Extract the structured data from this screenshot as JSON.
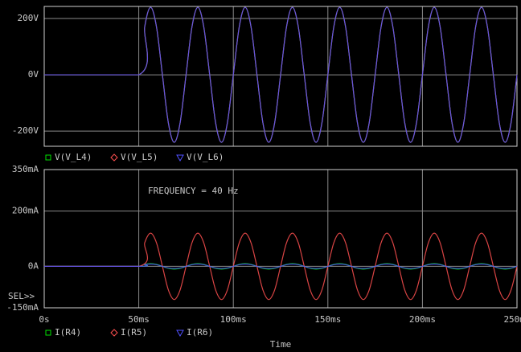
{
  "chart_data": [
    {
      "type": "line",
      "x": [
        0,
        50,
        53.125,
        56.25,
        59.375,
        62.5,
        65.625,
        68.75,
        71.875,
        75,
        78.125,
        81.25,
        84.375,
        87.5,
        90.625,
        93.75,
        96.875,
        100,
        103.125,
        106.25,
        109.375,
        112.5,
        115.625,
        118.75,
        121.875,
        125,
        128.125,
        131.25,
        134.375,
        137.5,
        140.625,
        143.75,
        146.875,
        150,
        153.125,
        156.25,
        159.375,
        162.5,
        165.625,
        168.75,
        171.875,
        175,
        178.125,
        181.25,
        184.375,
        187.5,
        190.625,
        193.75,
        196.875,
        200,
        203.125,
        206.25,
        209.375,
        212.5,
        215.625,
        218.75,
        221.875,
        225,
        228.125,
        231.25,
        234.375,
        237.5,
        240.625,
        243.75,
        246.875,
        250
      ],
      "xlim": [
        0,
        250
      ],
      "xticks": [
        0,
        50,
        100,
        150,
        200,
        250
      ],
      "ylim": [
        -254,
        243
      ],
      "yticks": [
        {
          "value": 200,
          "label": "200V"
        },
        {
          "value": 0,
          "label": "0V"
        },
        {
          "value": -200,
          "label": "-200V"
        }
      ],
      "grid": true,
      "series": [
        {
          "name": "V(V_L4)",
          "color": "#00e000",
          "marker": "square",
          "values": [
            0,
            0,
            170,
            240,
            170,
            0,
            -170,
            -240,
            -170,
            0,
            170,
            240,
            170,
            0,
            -170,
            -240,
            -170,
            0,
            170,
            240,
            170,
            0,
            -170,
            -240,
            -170,
            0,
            170,
            240,
            170,
            0,
            -170,
            -240,
            -170,
            0,
            170,
            240,
            170,
            0,
            -170,
            -240,
            -170,
            0,
            170,
            240,
            170,
            0,
            -170,
            -240,
            -170,
            0,
            170,
            240,
            170,
            0,
            -170,
            -240,
            -170,
            0,
            170,
            240,
            170,
            0,
            -170,
            -240,
            -170,
            0
          ]
        },
        {
          "name": "V(V_L5)",
          "color": "#ff5050",
          "marker": "diamond",
          "values": [
            0,
            0,
            170,
            240,
            170,
            0,
            -170,
            -240,
            -170,
            0,
            170,
            240,
            170,
            0,
            -170,
            -240,
            -170,
            0,
            170,
            240,
            170,
            0,
            -170,
            -240,
            -170,
            0,
            170,
            240,
            170,
            0,
            -170,
            -240,
            -170,
            0,
            170,
            240,
            170,
            0,
            -170,
            -240,
            -170,
            0,
            170,
            240,
            170,
            0,
            -170,
            -240,
            -170,
            0,
            170,
            240,
            170,
            0,
            -170,
            -240,
            -170,
            0,
            170,
            240,
            170,
            0,
            -170,
            -240,
            -170,
            0
          ]
        },
        {
          "name": "V(V_L6)",
          "color": "#5050ff",
          "marker": "triangle",
          "values": [
            0,
            0,
            170,
            240,
            170,
            0,
            -170,
            -240,
            -170,
            0,
            170,
            240,
            170,
            0,
            -170,
            -240,
            -170,
            0,
            170,
            240,
            170,
            0,
            -170,
            -240,
            -170,
            0,
            170,
            240,
            170,
            0,
            -170,
            -240,
            -170,
            0,
            170,
            240,
            170,
            0,
            -170,
            -240,
            -170,
            0,
            170,
            240,
            170,
            0,
            -170,
            -240,
            -170,
            0,
            170,
            240,
            170,
            0,
            -170,
            -240,
            -170,
            0,
            170,
            240,
            170,
            0,
            -170,
            -240,
            -170,
            0
          ]
        }
      ]
    },
    {
      "type": "line",
      "x": [
        0,
        50,
        53.125,
        56.25,
        59.375,
        62.5,
        65.625,
        68.75,
        71.875,
        75,
        78.125,
        81.25,
        84.375,
        87.5,
        90.625,
        93.75,
        96.875,
        100,
        103.125,
        106.25,
        109.375,
        112.5,
        115.625,
        118.75,
        121.875,
        125,
        128.125,
        131.25,
        134.375,
        137.5,
        140.625,
        143.75,
        146.875,
        150,
        153.125,
        156.25,
        159.375,
        162.5,
        165.625,
        168.75,
        171.875,
        175,
        178.125,
        181.25,
        184.375,
        187.5,
        190.625,
        193.75,
        196.875,
        200,
        203.125,
        206.25,
        209.375,
        212.5,
        215.625,
        218.75,
        221.875,
        225,
        228.125,
        231.25,
        234.375,
        237.5,
        240.625,
        243.75,
        246.875,
        250
      ],
      "xlim": [
        0,
        250
      ],
      "xticks": [
        {
          "value": 0,
          "label": "0s"
        },
        {
          "value": 50,
          "label": "50ms"
        },
        {
          "value": 100,
          "label": "100ms"
        },
        {
          "value": 150,
          "label": "150ms"
        },
        {
          "value": 200,
          "label": "200ms"
        },
        {
          "value": 250,
          "label": "250ms"
        }
      ],
      "ylim": [
        -150,
        350
      ],
      "yticks": [
        {
          "value": 350,
          "label": "350mA"
        },
        {
          "value": 200,
          "label": "200mA"
        },
        {
          "value": 0,
          "label": "0A"
        },
        {
          "value": -150,
          "label": "-150mA"
        }
      ],
      "grid": true,
      "x_label": "Time",
      "annotation": "FREQUENCY = 40 Hz",
      "cursor_label": "SEL>>",
      "series": [
        {
          "name": "I(R4)",
          "color": "#00e000",
          "marker": "square",
          "values": [
            0,
            0,
            7,
            10,
            7,
            0,
            -7,
            -10,
            -7,
            0,
            7,
            10,
            7,
            0,
            -7,
            -10,
            -7,
            0,
            7,
            10,
            7,
            0,
            -7,
            -10,
            -7,
            0,
            7,
            10,
            7,
            0,
            -7,
            -10,
            -7,
            0,
            7,
            10,
            7,
            0,
            -7,
            -10,
            -7,
            0,
            7,
            10,
            7,
            0,
            -7,
            -10,
            -7,
            0,
            7,
            10,
            7,
            0,
            -7,
            -10,
            -7,
            0,
            7,
            10,
            7,
            0,
            -7,
            -10,
            -7,
            0
          ]
        },
        {
          "name": "I(R5)",
          "color": "#ff5050",
          "marker": "diamond",
          "values": [
            0,
            0,
            85,
            120,
            85,
            0,
            -85,
            -120,
            -85,
            0,
            85,
            120,
            85,
            0,
            -85,
            -120,
            -85,
            0,
            85,
            120,
            85,
            0,
            -85,
            -120,
            -85,
            0,
            85,
            120,
            85,
            0,
            -85,
            -120,
            -85,
            0,
            85,
            120,
            85,
            0,
            -85,
            -120,
            -85,
            0,
            85,
            120,
            85,
            0,
            -85,
            -120,
            -85,
            0,
            85,
            120,
            85,
            0,
            -85,
            -120,
            -85,
            0,
            85,
            120,
            85,
            0,
            -85,
            -120,
            -85,
            0
          ]
        },
        {
          "name": "I(R6)",
          "color": "#5050ff",
          "marker": "triangle",
          "values": [
            0,
            0,
            6,
            8,
            6,
            0,
            -6,
            -8,
            -6,
            0,
            6,
            8,
            6,
            0,
            -6,
            -8,
            -6,
            0,
            6,
            8,
            6,
            0,
            -6,
            -8,
            -6,
            0,
            6,
            8,
            6,
            0,
            -6,
            -8,
            -6,
            0,
            6,
            8,
            6,
            0,
            -6,
            -8,
            -6,
            0,
            6,
            8,
            6,
            0,
            -6,
            -8,
            -6,
            0,
            6,
            8,
            6,
            0,
            -6,
            -8,
            -6,
            0,
            6,
            8,
            6,
            0,
            -6,
            -8,
            -6,
            0
          ]
        }
      ]
    }
  ]
}
